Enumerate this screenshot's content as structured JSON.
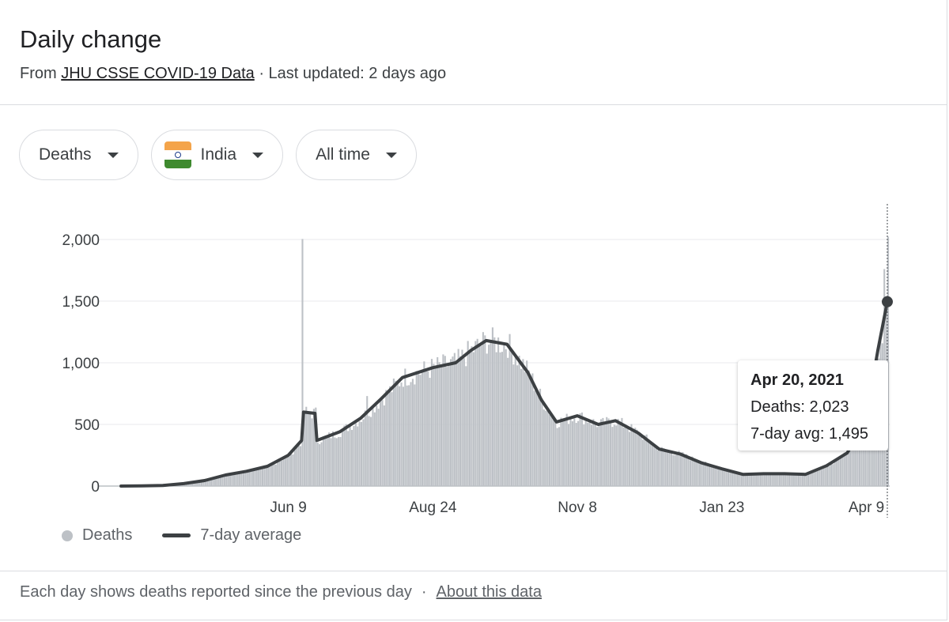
{
  "header": {
    "title": "Daily change",
    "source_prefix": "From",
    "source_link": "JHU CSSE COVID-19 Data",
    "updated": "· Last updated: 2 days ago"
  },
  "filters": {
    "metric": "Deaths",
    "country": "India",
    "range": "All time"
  },
  "tooltip": {
    "date": "Apr 20, 2021",
    "deaths": "Deaths: 2,023",
    "avg": "7-day avg: 1,495"
  },
  "legend": {
    "bars_label": "Deaths",
    "line_label": "7-day average"
  },
  "footer": {
    "note": "Each day shows deaths reported since the previous day",
    "sep": "·",
    "link": "About this data"
  },
  "colors": {
    "bars": "#bdc1c6",
    "line": "#3c4043",
    "grid": "#e8eaed"
  },
  "chart_data": {
    "type": "bar",
    "title": "",
    "series": [
      {
        "name": "Deaths",
        "kind": "bar",
        "x": [
          "2020-03-13",
          "2020-03-24",
          "2020-04-04",
          "2020-04-15",
          "2020-04-26",
          "2020-05-07",
          "2020-05-18",
          "2020-05-29",
          "2020-06-09",
          "2020-06-16",
          "2020-06-17",
          "2020-06-18",
          "2020-06-28",
          "2020-07-09",
          "2020-07-20",
          "2020-07-31",
          "2020-08-11",
          "2020-08-24",
          "2020-09-04",
          "2020-09-15",
          "2020-09-26",
          "2020-10-07",
          "2020-10-18",
          "2020-10-29",
          "2020-11-08",
          "2020-11-19",
          "2020-11-30",
          "2020-12-11",
          "2020-12-22",
          "2021-01-02",
          "2021-01-13",
          "2021-01-23",
          "2021-02-03",
          "2021-02-14",
          "2021-02-25",
          "2021-03-08",
          "2021-03-19",
          "2021-03-30",
          "2021-04-09",
          "2021-04-15",
          "2021-04-18",
          "2021-04-20"
        ],
        "values": [
          1,
          4,
          12,
          30,
          60,
          100,
          140,
          180,
          300,
          2004,
          380,
          370,
          430,
          560,
          730,
          880,
          960,
          1000,
          1150,
          1180,
          1100,
          920,
          700,
          570,
          540,
          520,
          470,
          380,
          300,
          240,
          170,
          150,
          110,
          100,
          100,
          110,
          160,
          280,
          600,
          1340,
          1760,
          2023
        ]
      },
      {
        "name": "7-day average",
        "kind": "line",
        "x": [
          "2020-03-13",
          "2020-03-24",
          "2020-04-04",
          "2020-04-15",
          "2020-04-26",
          "2020-05-07",
          "2020-05-18",
          "2020-05-29",
          "2020-06-09",
          "2020-06-16",
          "2020-06-17",
          "2020-06-23",
          "2020-06-24",
          "2020-07-06",
          "2020-07-17",
          "2020-07-28",
          "2020-08-08",
          "2020-08-24",
          "2020-09-05",
          "2020-09-13",
          "2020-09-21",
          "2020-10-02",
          "2020-10-13",
          "2020-10-20",
          "2020-10-28",
          "2020-11-08",
          "2020-11-19",
          "2020-11-28",
          "2020-12-10",
          "2020-12-21",
          "2021-01-01",
          "2021-01-12",
          "2021-01-23",
          "2021-02-03",
          "2021-02-14",
          "2021-02-25",
          "2021-03-08",
          "2021-03-19",
          "2021-03-30",
          "2021-04-09",
          "2021-04-15",
          "2021-04-20"
        ],
        "values": [
          0,
          1,
          5,
          20,
          45,
          90,
          120,
          160,
          250,
          370,
          600,
          590,
          370,
          440,
          550,
          710,
          880,
          960,
          1000,
          1100,
          1180,
          1150,
          920,
          700,
          520,
          570,
          500,
          530,
          430,
          300,
          260,
          190,
          140,
          95,
          100,
          100,
          95,
          165,
          270,
          560,
          1100,
          1495
        ]
      }
    ],
    "x_ticks": [
      "Jun 9",
      "Aug 24",
      "Nov 8",
      "Jan 23",
      "Apr 9"
    ],
    "y_ticks": [
      "0",
      "500",
      "1,000",
      "1,500",
      "2,000"
    ],
    "ylim": [
      0,
      2000
    ],
    "xlim": [
      "2020-03-13",
      "2021-04-20"
    ],
    "grid": true,
    "legend": "bottom-left"
  }
}
